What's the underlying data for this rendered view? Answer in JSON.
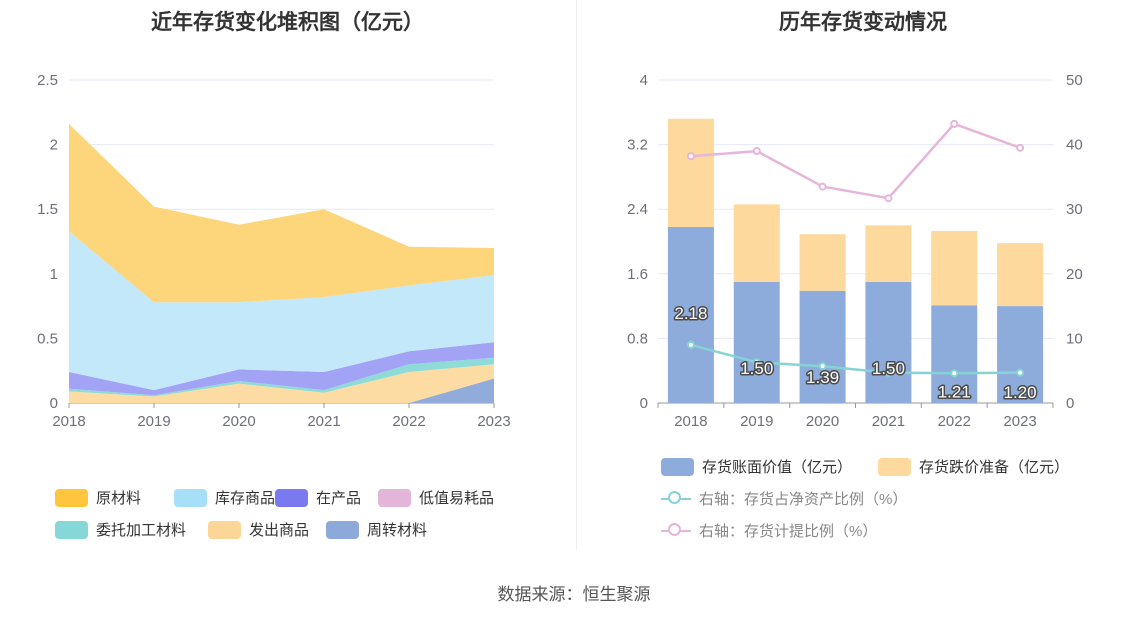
{
  "source_text": "数据来源：恒生聚源",
  "chart_data": [
    {
      "type": "area",
      "stacked": true,
      "title": "近年存货变化堆积图（亿元）",
      "x": [
        "2018",
        "2019",
        "2020",
        "2021",
        "2022",
        "2023"
      ],
      "ylim": [
        0,
        2.5
      ],
      "y_ticks": [
        "0",
        "0.5",
        "1",
        "1.5",
        "2",
        "2.5"
      ],
      "grid": true,
      "legend_position": "bottom",
      "series": [
        {
          "name": "周转材料",
          "color": "#91acdb",
          "values": [
            0,
            0,
            0,
            0,
            0,
            0.19
          ]
        },
        {
          "name": "发出商品",
          "color": "#fddca3",
          "values": [
            0.09,
            0.05,
            0.15,
            0.08,
            0.24,
            0.11
          ]
        },
        {
          "name": "委托加工材料",
          "color": "#8ddcd8",
          "values": [
            0.02,
            0.01,
            0.02,
            0.02,
            0.06,
            0.05
          ]
        },
        {
          "name": "低值易耗品",
          "color": "#e5b8da",
          "values": [
            0.0,
            0.0,
            0.0,
            0.0,
            0.0,
            0.0
          ]
        },
        {
          "name": "在产品",
          "color": "#a3a3f5",
          "values": [
            0.13,
            0.04,
            0.09,
            0.14,
            0.1,
            0.12
          ]
        },
        {
          "name": "库存商品",
          "color": "#c3e8fa",
          "values": [
            1.09,
            0.68,
            0.52,
            0.58,
            0.51,
            0.52
          ]
        },
        {
          "name": "原材料",
          "color": "#fdd57b",
          "values": [
            0.83,
            0.74,
            0.6,
            0.68,
            0.3,
            0.21
          ]
        }
      ],
      "legend": [
        {
          "name": "原材料",
          "color": "#ffc53d"
        },
        {
          "name": "库存商品",
          "color": "#a7dff8"
        },
        {
          "name": "在产品",
          "color": "#7b79f0"
        },
        {
          "name": "低值易耗品",
          "color": "#e2b5d9"
        },
        {
          "name": "委托加工材料",
          "color": "#86d7d8"
        },
        {
          "name": "发出商品",
          "color": "#fcd696"
        },
        {
          "name": "周转材料",
          "color": "#8ca9d9"
        }
      ]
    },
    {
      "type": "bar",
      "stacked": true,
      "title": "历年存货变动情况",
      "categories": [
        "2018",
        "2019",
        "2020",
        "2021",
        "2022",
        "2023"
      ],
      "ylim": [
        0,
        4
      ],
      "y_ticks": [
        "0",
        "0.8",
        "1.6",
        "2.4",
        "3.2",
        "4"
      ],
      "y2lim": [
        0,
        50
      ],
      "y2_ticks": [
        "0",
        "10",
        "20",
        "30",
        "40",
        "50"
      ],
      "grid": true,
      "legend_position": "bottom",
      "series": [
        {
          "name": "存货账面价值（亿元）",
          "axis": "left",
          "kind": "bar",
          "color": "#8eacdb",
          "values": [
            2.18,
            1.5,
            1.39,
            1.5,
            1.21,
            1.2
          ],
          "labels": [
            "2.18",
            "1.50",
            "1.39",
            "1.50",
            "1.21",
            "1.20"
          ]
        },
        {
          "name": "存货跌价准备（亿元）",
          "axis": "left",
          "kind": "bar",
          "color": "#fed99d",
          "values": [
            1.34,
            0.96,
            0.7,
            0.7,
            0.92,
            0.78
          ]
        },
        {
          "name": "右轴：存货占净资产比例（%）",
          "axis": "right",
          "kind": "line",
          "color": "#86d3d6",
          "values": [
            9.0,
            6.3,
            5.7,
            4.7,
            4.6,
            4.7
          ]
        },
        {
          "name": "右轴：存货计提比例（%）",
          "axis": "right",
          "kind": "line",
          "color": "#e6b5da",
          "values": [
            38.2,
            39.0,
            33.5,
            31.7,
            43.2,
            39.5
          ]
        }
      ]
    }
  ]
}
